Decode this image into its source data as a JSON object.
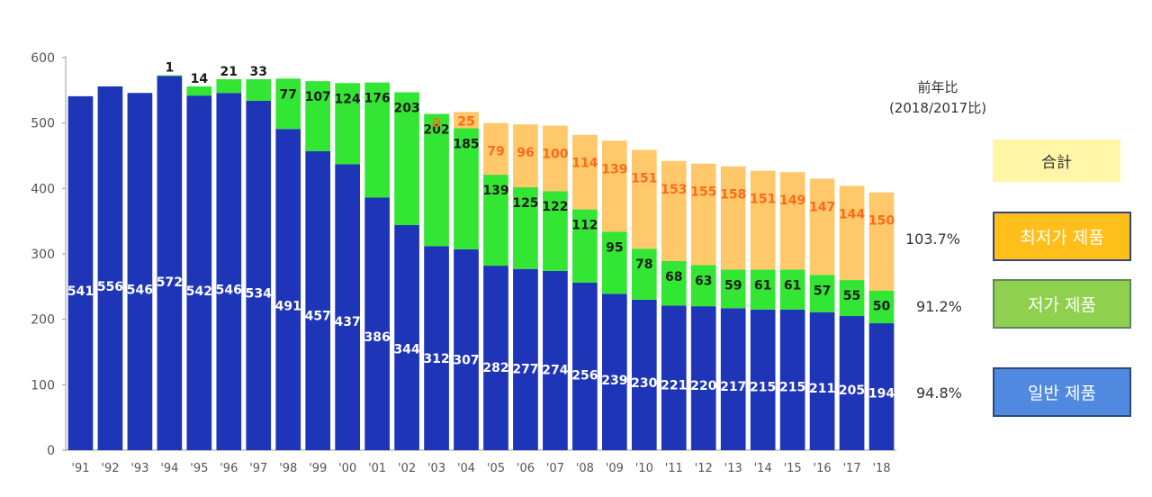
{
  "chart_data": {
    "type": "bar",
    "stacked": true,
    "ylim": [
      0,
      600
    ],
    "yticks": [
      0,
      100,
      200,
      300,
      400,
      500,
      600
    ],
    "categories": [
      "'91",
      "'92",
      "'93",
      "'94",
      "'95",
      "'96",
      "'97",
      "'98",
      "'99",
      "'00",
      "'01",
      "'02",
      "'03",
      "'04",
      "'05",
      "'06",
      "'07",
      "'08",
      "'09",
      "'10",
      "'11",
      "'12",
      "'13",
      "'14",
      "'15",
      "'16",
      "'17",
      "'18"
    ],
    "series": [
      {
        "name": "일반 제품",
        "color": "#1f35b8",
        "values": [
          541,
          556,
          546,
          572,
          542,
          546,
          534,
          491,
          457,
          437,
          386,
          344,
          312,
          307,
          282,
          277,
          274,
          256,
          239,
          230,
          221,
          220,
          217,
          215,
          215,
          211,
          205,
          194
        ]
      },
      {
        "name": "저가 제품",
        "color": "#33e633",
        "values": [
          null,
          null,
          null,
          1,
          14,
          21,
          33,
          77,
          107,
          124,
          176,
          203,
          202,
          185,
          139,
          125,
          122,
          112,
          95,
          78,
          68,
          63,
          59,
          61,
          61,
          57,
          55,
          50
        ]
      },
      {
        "name": "최저가 제품",
        "color": "#ffc86b",
        "values": [
          null,
          null,
          null,
          null,
          null,
          null,
          null,
          null,
          null,
          null,
          null,
          null,
          0,
          25,
          79,
          96,
          100,
          114,
          139,
          151,
          153,
          155,
          158,
          151,
          149,
          147,
          144,
          150
        ]
      }
    ],
    "grid": false
  },
  "side_note": {
    "line1": "前年比",
    "line2": "(2018/2017比)"
  },
  "legend": {
    "total": {
      "label": "合計",
      "color": "#fff6a8"
    },
    "lowest": {
      "label": "최저가 제품",
      "color": "#ffbf1a",
      "ratio": "103.7%"
    },
    "low": {
      "label": "저가 제품",
      "color": "#8fd14f",
      "ratio": "91.2%"
    },
    "general": {
      "label": "일반 제품",
      "color": "#4f8ae0",
      "ratio": "94.8%"
    }
  }
}
